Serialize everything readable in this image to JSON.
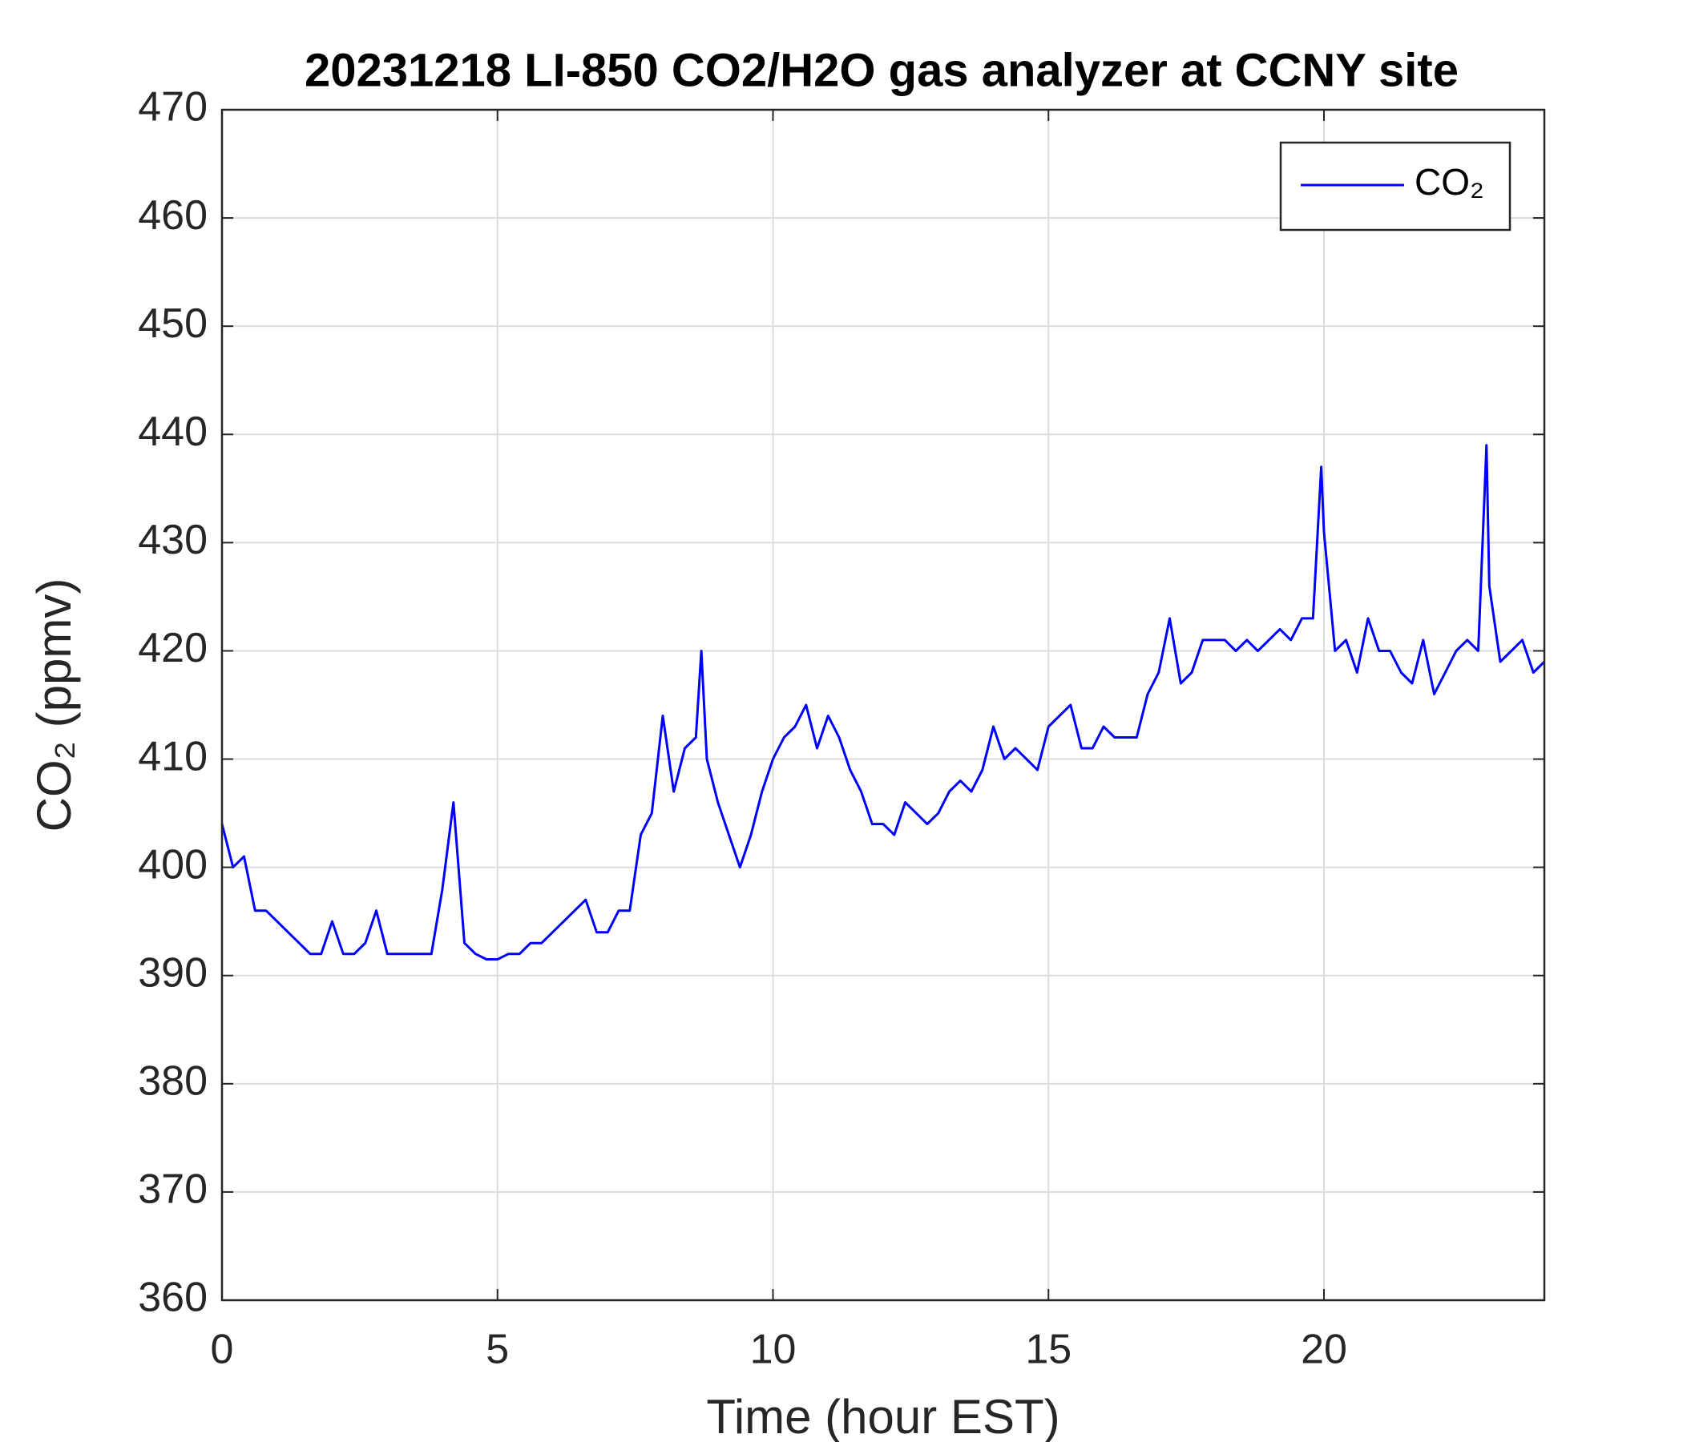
{
  "chart_data": {
    "type": "line",
    "title": "20231218 LI-850 CO2/H2O gas analyzer at CCNY site",
    "xlabel": "Time (hour EST)",
    "ylabel": "CO₂ (ppmv)",
    "x": [
      0,
      0.2,
      0.4,
      0.6,
      0.8,
      1.0,
      1.2,
      1.4,
      1.6,
      1.8,
      2.0,
      2.2,
      2.4,
      2.6,
      2.8,
      3.0,
      3.2,
      3.4,
      3.6,
      3.8,
      4.0,
      4.2,
      4.4,
      4.6,
      4.8,
      5.0,
      5.2,
      5.4,
      5.6,
      5.8,
      6.0,
      6.2,
      6.4,
      6.6,
      6.8,
      7.0,
      7.2,
      7.4,
      7.6,
      7.8,
      8.0,
      8.2,
      8.4,
      8.6,
      8.7,
      8.8,
      9.0,
      9.2,
      9.4,
      9.6,
      9.8,
      10.0,
      10.2,
      10.4,
      10.6,
      10.8,
      11.0,
      11.2,
      11.4,
      11.6,
      11.8,
      12.0,
      12.2,
      12.4,
      12.6,
      12.8,
      13.0,
      13.2,
      13.4,
      13.6,
      13.8,
      14.0,
      14.2,
      14.4,
      14.6,
      14.8,
      15.0,
      15.2,
      15.4,
      15.6,
      15.8,
      16.0,
      16.2,
      16.4,
      16.6,
      16.8,
      17.0,
      17.2,
      17.4,
      17.6,
      17.8,
      18.0,
      18.2,
      18.4,
      18.6,
      18.8,
      19.0,
      19.2,
      19.4,
      19.6,
      19.8,
      19.95,
      20.0,
      20.2,
      20.4,
      20.6,
      20.8,
      21.0,
      21.2,
      21.4,
      21.6,
      21.8,
      22.0,
      22.2,
      22.4,
      22.6,
      22.8,
      22.95,
      23.0,
      23.2,
      23.4,
      23.6,
      23.8,
      24.0
    ],
    "series": [
      {
        "name": "CO₂",
        "color": "#0000ff",
        "values": [
          404,
          400,
          401,
          396,
          396,
          395,
          394,
          393,
          392,
          392,
          395,
          392,
          392,
          393,
          396,
          392,
          392,
          392,
          392,
          392,
          398,
          406,
          393,
          392,
          391.5,
          391.5,
          392,
          392,
          393,
          393,
          394,
          395,
          396,
          397,
          394,
          394,
          396,
          396,
          403,
          405,
          414,
          407,
          411,
          412,
          420,
          410,
          406,
          403,
          400,
          403,
          407,
          410,
          412,
          413,
          415,
          411,
          414,
          412,
          409,
          407,
          404,
          404,
          403,
          406,
          405,
          404,
          405,
          407,
          408,
          407,
          409,
          413,
          410,
          411,
          410,
          409,
          413,
          414,
          415,
          411,
          411,
          413,
          412,
          412,
          412,
          416,
          418,
          423,
          417,
          418,
          421,
          421,
          421,
          420,
          421,
          420,
          421,
          422,
          421,
          423,
          423,
          437,
          431,
          420,
          421,
          418,
          423,
          420,
          420,
          418,
          417,
          421,
          416,
          418,
          420,
          421,
          420,
          439,
          426,
          419,
          420,
          421,
          418,
          419
        ]
      }
    ],
    "xlim": [
      0,
      24
    ],
    "xticks": [
      0,
      5,
      10,
      15,
      20
    ],
    "ylim": [
      360,
      470
    ],
    "yticks": [
      360,
      370,
      380,
      390,
      400,
      410,
      420,
      430,
      440,
      450,
      460,
      470
    ],
    "grid": true,
    "legend": "upper right"
  }
}
